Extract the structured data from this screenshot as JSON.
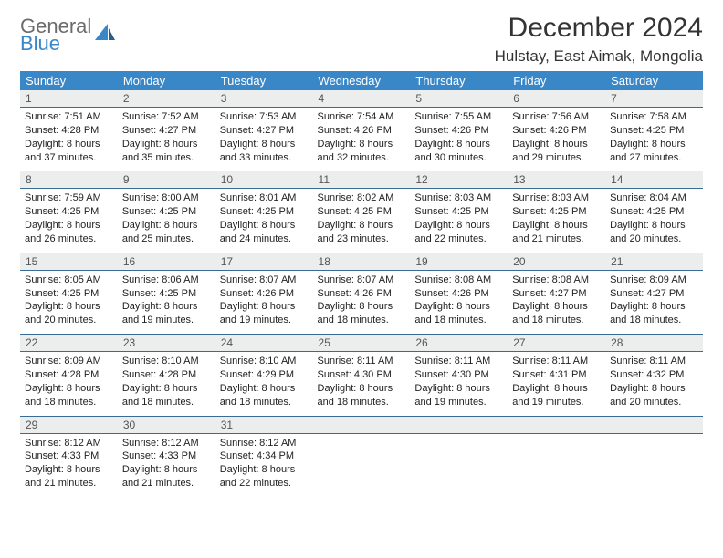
{
  "brand": {
    "word1": "General",
    "word2": "Blue"
  },
  "colors": {
    "header_bg": "#3a87c8",
    "header_text": "#ffffff",
    "daynum_bg": "#eceded",
    "rule": "#3a6a96",
    "logo_gray": "#6b6b6b",
    "logo_blue": "#3a87c8"
  },
  "month_title": "December 2024",
  "location": "Hulstay, East Aimak, Mongolia",
  "weekdays": [
    "Sunday",
    "Monday",
    "Tuesday",
    "Wednesday",
    "Thursday",
    "Friday",
    "Saturday"
  ],
  "weeks": [
    [
      {
        "n": "1",
        "sr": "Sunrise: 7:51 AM",
        "ss": "Sunset: 4:28 PM",
        "d1": "Daylight: 8 hours",
        "d2": "and 37 minutes."
      },
      {
        "n": "2",
        "sr": "Sunrise: 7:52 AM",
        "ss": "Sunset: 4:27 PM",
        "d1": "Daylight: 8 hours",
        "d2": "and 35 minutes."
      },
      {
        "n": "3",
        "sr": "Sunrise: 7:53 AM",
        "ss": "Sunset: 4:27 PM",
        "d1": "Daylight: 8 hours",
        "d2": "and 33 minutes."
      },
      {
        "n": "4",
        "sr": "Sunrise: 7:54 AM",
        "ss": "Sunset: 4:26 PM",
        "d1": "Daylight: 8 hours",
        "d2": "and 32 minutes."
      },
      {
        "n": "5",
        "sr": "Sunrise: 7:55 AM",
        "ss": "Sunset: 4:26 PM",
        "d1": "Daylight: 8 hours",
        "d2": "and 30 minutes."
      },
      {
        "n": "6",
        "sr": "Sunrise: 7:56 AM",
        "ss": "Sunset: 4:26 PM",
        "d1": "Daylight: 8 hours",
        "d2": "and 29 minutes."
      },
      {
        "n": "7",
        "sr": "Sunrise: 7:58 AM",
        "ss": "Sunset: 4:25 PM",
        "d1": "Daylight: 8 hours",
        "d2": "and 27 minutes."
      }
    ],
    [
      {
        "n": "8",
        "sr": "Sunrise: 7:59 AM",
        "ss": "Sunset: 4:25 PM",
        "d1": "Daylight: 8 hours",
        "d2": "and 26 minutes."
      },
      {
        "n": "9",
        "sr": "Sunrise: 8:00 AM",
        "ss": "Sunset: 4:25 PM",
        "d1": "Daylight: 8 hours",
        "d2": "and 25 minutes."
      },
      {
        "n": "10",
        "sr": "Sunrise: 8:01 AM",
        "ss": "Sunset: 4:25 PM",
        "d1": "Daylight: 8 hours",
        "d2": "and 24 minutes."
      },
      {
        "n": "11",
        "sr": "Sunrise: 8:02 AM",
        "ss": "Sunset: 4:25 PM",
        "d1": "Daylight: 8 hours",
        "d2": "and 23 minutes."
      },
      {
        "n": "12",
        "sr": "Sunrise: 8:03 AM",
        "ss": "Sunset: 4:25 PM",
        "d1": "Daylight: 8 hours",
        "d2": "and 22 minutes."
      },
      {
        "n": "13",
        "sr": "Sunrise: 8:03 AM",
        "ss": "Sunset: 4:25 PM",
        "d1": "Daylight: 8 hours",
        "d2": "and 21 minutes."
      },
      {
        "n": "14",
        "sr": "Sunrise: 8:04 AM",
        "ss": "Sunset: 4:25 PM",
        "d1": "Daylight: 8 hours",
        "d2": "and 20 minutes."
      }
    ],
    [
      {
        "n": "15",
        "sr": "Sunrise: 8:05 AM",
        "ss": "Sunset: 4:25 PM",
        "d1": "Daylight: 8 hours",
        "d2": "and 20 minutes."
      },
      {
        "n": "16",
        "sr": "Sunrise: 8:06 AM",
        "ss": "Sunset: 4:25 PM",
        "d1": "Daylight: 8 hours",
        "d2": "and 19 minutes."
      },
      {
        "n": "17",
        "sr": "Sunrise: 8:07 AM",
        "ss": "Sunset: 4:26 PM",
        "d1": "Daylight: 8 hours",
        "d2": "and 19 minutes."
      },
      {
        "n": "18",
        "sr": "Sunrise: 8:07 AM",
        "ss": "Sunset: 4:26 PM",
        "d1": "Daylight: 8 hours",
        "d2": "and 18 minutes."
      },
      {
        "n": "19",
        "sr": "Sunrise: 8:08 AM",
        "ss": "Sunset: 4:26 PM",
        "d1": "Daylight: 8 hours",
        "d2": "and 18 minutes."
      },
      {
        "n": "20",
        "sr": "Sunrise: 8:08 AM",
        "ss": "Sunset: 4:27 PM",
        "d1": "Daylight: 8 hours",
        "d2": "and 18 minutes."
      },
      {
        "n": "21",
        "sr": "Sunrise: 8:09 AM",
        "ss": "Sunset: 4:27 PM",
        "d1": "Daylight: 8 hours",
        "d2": "and 18 minutes."
      }
    ],
    [
      {
        "n": "22",
        "sr": "Sunrise: 8:09 AM",
        "ss": "Sunset: 4:28 PM",
        "d1": "Daylight: 8 hours",
        "d2": "and 18 minutes."
      },
      {
        "n": "23",
        "sr": "Sunrise: 8:10 AM",
        "ss": "Sunset: 4:28 PM",
        "d1": "Daylight: 8 hours",
        "d2": "and 18 minutes."
      },
      {
        "n": "24",
        "sr": "Sunrise: 8:10 AM",
        "ss": "Sunset: 4:29 PM",
        "d1": "Daylight: 8 hours",
        "d2": "and 18 minutes."
      },
      {
        "n": "25",
        "sr": "Sunrise: 8:11 AM",
        "ss": "Sunset: 4:30 PM",
        "d1": "Daylight: 8 hours",
        "d2": "and 18 minutes."
      },
      {
        "n": "26",
        "sr": "Sunrise: 8:11 AM",
        "ss": "Sunset: 4:30 PM",
        "d1": "Daylight: 8 hours",
        "d2": "and 19 minutes."
      },
      {
        "n": "27",
        "sr": "Sunrise: 8:11 AM",
        "ss": "Sunset: 4:31 PM",
        "d1": "Daylight: 8 hours",
        "d2": "and 19 minutes."
      },
      {
        "n": "28",
        "sr": "Sunrise: 8:11 AM",
        "ss": "Sunset: 4:32 PM",
        "d1": "Daylight: 8 hours",
        "d2": "and 20 minutes."
      }
    ],
    [
      {
        "n": "29",
        "sr": "Sunrise: 8:12 AM",
        "ss": "Sunset: 4:33 PM",
        "d1": "Daylight: 8 hours",
        "d2": "and 21 minutes."
      },
      {
        "n": "30",
        "sr": "Sunrise: 8:12 AM",
        "ss": "Sunset: 4:33 PM",
        "d1": "Daylight: 8 hours",
        "d2": "and 21 minutes."
      },
      {
        "n": "31",
        "sr": "Sunrise: 8:12 AM",
        "ss": "Sunset: 4:34 PM",
        "d1": "Daylight: 8 hours",
        "d2": "and 22 minutes."
      },
      {
        "empty": true
      },
      {
        "empty": true
      },
      {
        "empty": true
      },
      {
        "empty": true
      }
    ]
  ]
}
